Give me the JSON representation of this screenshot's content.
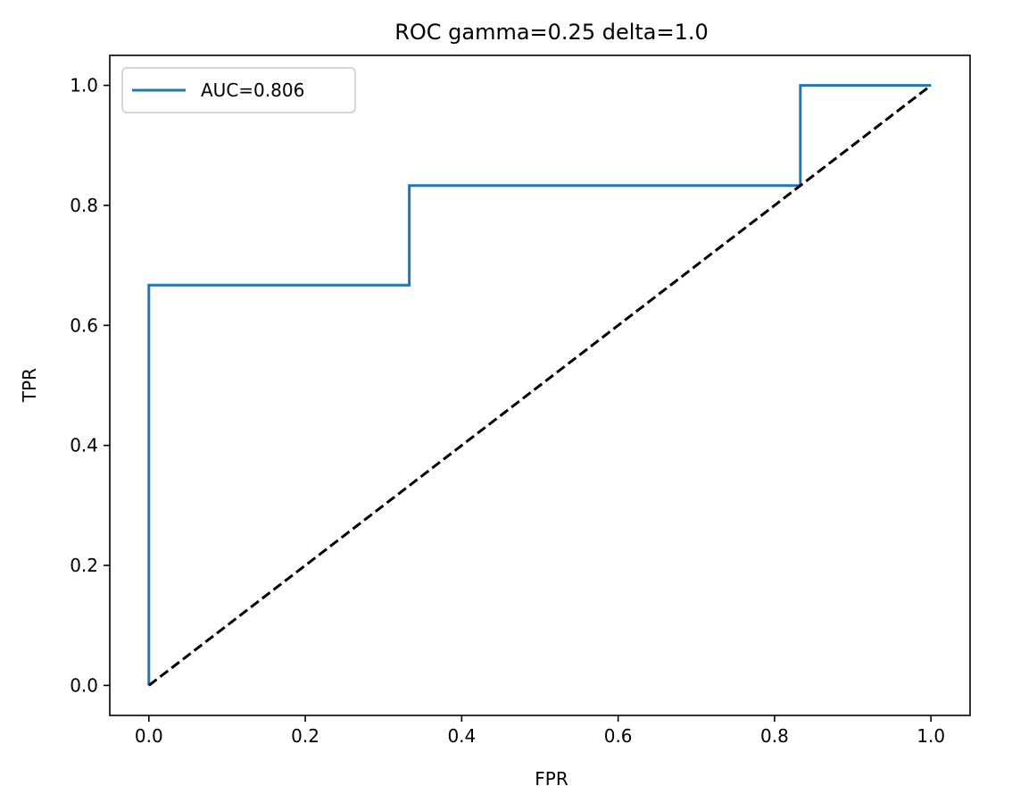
{
  "chart_data": {
    "type": "line",
    "title": "ROC gamma=0.25 delta=1.0",
    "xlabel": "FPR",
    "ylabel": "TPR",
    "xlim": [
      -0.05,
      1.05
    ],
    "ylim": [
      -0.05,
      1.05
    ],
    "xticks": [
      0.0,
      0.2,
      0.4,
      0.6,
      0.8,
      1.0
    ],
    "yticks": [
      0.0,
      0.2,
      0.4,
      0.6,
      0.8,
      1.0
    ],
    "xtick_labels": [
      "0.0",
      "0.2",
      "0.4",
      "0.6",
      "0.8",
      "1.0"
    ],
    "ytick_labels": [
      "0.0",
      "0.2",
      "0.4",
      "0.6",
      "0.8",
      "1.0"
    ],
    "grid": false,
    "legend_position": "upper-left",
    "series": [
      {
        "name": "AUC=0.806",
        "color": "#1f77b4",
        "style": "solid",
        "x": [
          0.0,
          0.0,
          0.0,
          0.333,
          0.333,
          0.833,
          0.833,
          1.0
        ],
        "y": [
          0.0,
          0.0,
          0.667,
          0.667,
          0.833,
          0.833,
          1.0,
          1.0
        ]
      },
      {
        "color": "#000000",
        "style": "dashed",
        "x": [
          0.0,
          1.0
        ],
        "y": [
          0.0,
          1.0
        ]
      }
    ]
  }
}
